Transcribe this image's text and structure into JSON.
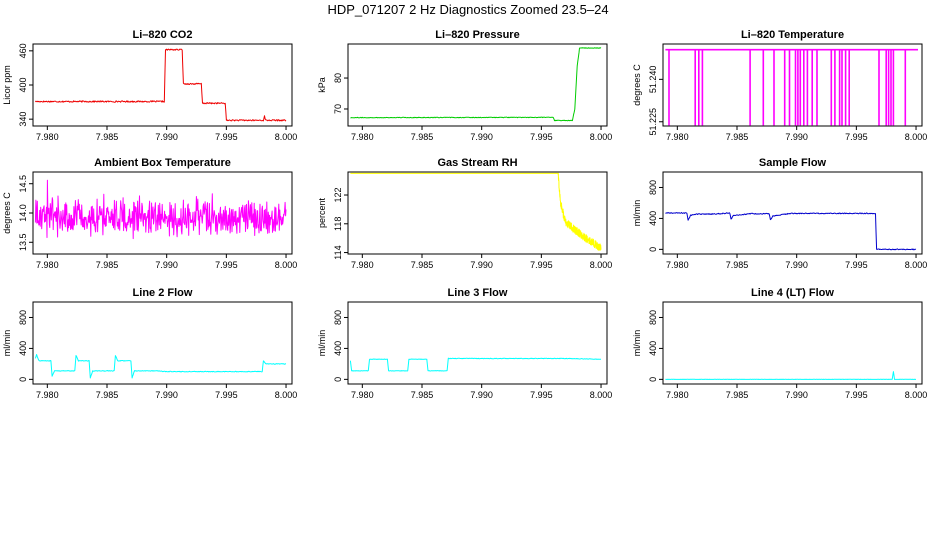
{
  "figure": {
    "title": "HDP_071207  2 Hz Diagnostics Zoomed 23.5–24"
  },
  "colors": {
    "red": "#ee0000",
    "green": "#00cc00",
    "magenta": "#ff00ff",
    "yellow": "#ffff00",
    "blue": "#0000cc",
    "cyan": "#00ffff",
    "axis": "#000000"
  },
  "chart_data": [
    {
      "id": "co2",
      "type": "line",
      "title": "Li–820 CO2",
      "ylabel": "Licor ppm",
      "xlabel": "",
      "color": "red",
      "xlim": [
        7.9788,
        8.0005
      ],
      "ylim": [
        328,
        472
      ],
      "x_ticks": [
        "7.980",
        "7.985",
        "7.990",
        "7.995",
        "8.000"
      ],
      "x_tick_values": [
        7.98,
        7.985,
        7.99,
        7.995,
        8.0
      ],
      "y_ticks": [
        "340",
        "400",
        "460"
      ],
      "y_tick_values": [
        340,
        400,
        460
      ],
      "pattern": "steps",
      "noise": 1.2,
      "points": [
        [
          7.979,
          371
        ],
        [
          7.9898,
          371
        ],
        [
          7.9899,
          462
        ],
        [
          7.9913,
          462
        ],
        [
          7.9914,
          402
        ],
        [
          7.9929,
          402
        ],
        [
          7.993,
          368
        ],
        [
          7.9949,
          368
        ],
        [
          7.995,
          338
        ],
        [
          7.9981,
          338
        ],
        [
          7.9982,
          345
        ],
        [
          7.9983,
          338
        ],
        [
          8.0,
          338
        ]
      ]
    },
    {
      "id": "pressure",
      "type": "line",
      "title": "Li–820 Pressure",
      "ylabel": "kPa",
      "xlabel": "",
      "color": "green",
      "xlim": [
        7.9788,
        8.0005
      ],
      "ylim": [
        64.5,
        91
      ],
      "x_ticks": [
        "7.980",
        "7.985",
        "7.990",
        "7.995",
        "8.000"
      ],
      "x_tick_values": [
        7.98,
        7.985,
        7.99,
        7.995,
        8.0
      ],
      "y_ticks": [
        "70",
        "80"
      ],
      "y_tick_values": [
        70,
        80
      ],
      "pattern": "steps",
      "noise": 0.1,
      "points": [
        [
          7.979,
          67.2
        ],
        [
          7.996,
          67.3
        ],
        [
          7.9961,
          66.3
        ],
        [
          7.9976,
          66.3
        ],
        [
          7.9978,
          70
        ],
        [
          7.998,
          84
        ],
        [
          7.9982,
          89.7
        ],
        [
          8.0,
          89.7
        ]
      ]
    },
    {
      "id": "licor-temp",
      "type": "line",
      "title": "Li–820 Temperature",
      "ylabel": "degrees C",
      "xlabel": "",
      "color": "magenta",
      "xlim": [
        7.9788,
        8.0005
      ],
      "ylim": [
        51.2235,
        51.2525
      ],
      "x_ticks": [
        "7.980",
        "7.985",
        "7.990",
        "7.995",
        "8.000"
      ],
      "x_tick_values": [
        7.98,
        7.985,
        7.99,
        7.995,
        8.0
      ],
      "y_ticks": [
        "51.225",
        "51.240"
      ],
      "y_tick_values": [
        51.225,
        51.24
      ],
      "pattern": "spikes",
      "base": 51.2505,
      "spike_value": 51.2237,
      "spike_x": [
        7.9793,
        7.9815,
        7.9818,
        7.9821,
        7.9861,
        7.9872,
        7.9881,
        7.989,
        7.9894,
        7.9899,
        7.9901,
        7.9903,
        7.9906,
        7.9909,
        7.9913,
        7.9917,
        7.9929,
        7.9932,
        7.9936,
        7.9938,
        7.9941,
        7.9944,
        7.9969,
        7.9975,
        7.9977,
        7.9979,
        7.9981,
        7.9991
      ]
    },
    {
      "id": "ambient-temp",
      "type": "line",
      "title": "Ambient Box Temperature",
      "ylabel": "degrees C",
      "xlabel": "",
      "color": "magenta",
      "xlim": [
        7.9788,
        8.0005
      ],
      "ylim": [
        13.3,
        14.7
      ],
      "x_ticks": [
        "7.980",
        "7.985",
        "7.990",
        "7.995",
        "8.000"
      ],
      "x_tick_values": [
        7.98,
        7.985,
        7.99,
        7.995,
        8.0
      ],
      "y_ticks": [
        "13.5",
        "14.0",
        "14.5"
      ],
      "y_tick_values": [
        13.5,
        14.0,
        14.5
      ],
      "pattern": "noise",
      "x_range": [
        7.979,
        8.0
      ],
      "mean": 13.93,
      "amplitude": 0.28
    },
    {
      "id": "gas-rh",
      "type": "line",
      "title": "Gas Stream RH",
      "ylabel": "percent",
      "xlabel": "",
      "color": "yellow",
      "xlim": [
        7.9788,
        8.0005
      ],
      "ylim": [
        113.8,
        125.2
      ],
      "x_ticks": [
        "7.980",
        "7.985",
        "7.990",
        "7.995",
        "8.000"
      ],
      "x_tick_values": [
        7.98,
        7.985,
        7.99,
        7.995,
        8.0
      ],
      "y_ticks": [
        "114",
        "118",
        "122"
      ],
      "y_tick_values": [
        114,
        118,
        122
      ],
      "pattern": "decay",
      "flat_value": 125.0,
      "flat_until": 7.9964,
      "points": [
        [
          7.9964,
          125.0
        ],
        [
          7.9966,
          121.0
        ],
        [
          7.997,
          118.3
        ],
        [
          7.998,
          116.9
        ],
        [
          7.999,
          115.7
        ],
        [
          8.0,
          114.6
        ]
      ],
      "noise": 0.55
    },
    {
      "id": "sample-flow",
      "type": "line",
      "title": "Sample Flow",
      "ylabel": "ml/min",
      "xlabel": "",
      "color": "blue",
      "xlim": [
        7.9788,
        8.0005
      ],
      "ylim": [
        -60,
        1000
      ],
      "x_ticks": [
        "7.980",
        "7.985",
        "7.990",
        "7.995",
        "8.000"
      ],
      "x_tick_values": [
        7.98,
        7.985,
        7.99,
        7.995,
        8.0
      ],
      "y_ticks": [
        "0",
        "400",
        "800"
      ],
      "y_tick_values": [
        0,
        400,
        800
      ],
      "pattern": "steps",
      "noise": 6,
      "points": [
        [
          7.979,
          470
        ],
        [
          7.9808,
          470
        ],
        [
          7.9809,
          380
        ],
        [
          7.9811,
          440
        ],
        [
          7.9816,
          455
        ],
        [
          7.983,
          455
        ],
        [
          7.9844,
          470
        ],
        [
          7.9845,
          390
        ],
        [
          7.9847,
          440
        ],
        [
          7.9862,
          460
        ],
        [
          7.9877,
          460
        ],
        [
          7.9878,
          380
        ],
        [
          7.988,
          430
        ],
        [
          7.9895,
          465
        ],
        [
          7.9966,
          465
        ],
        [
          7.9967,
          0
        ],
        [
          8.0,
          0
        ]
      ]
    },
    {
      "id": "line2-flow",
      "type": "line",
      "title": "Line 2 Flow",
      "ylabel": "ml/min",
      "xlabel": "",
      "color": "cyan",
      "xlim": [
        7.9788,
        8.0005
      ],
      "ylim": [
        -60,
        1000
      ],
      "x_ticks": [
        "7.980",
        "7.985",
        "7.990",
        "7.995",
        "8.000"
      ],
      "x_tick_values": [
        7.98,
        7.985,
        7.99,
        7.995,
        8.0
      ],
      "y_ticks": [
        "0",
        "400",
        "800"
      ],
      "y_tick_values": [
        0,
        400,
        800
      ],
      "pattern": "steps",
      "noise": 4,
      "points": [
        [
          7.979,
          270
        ],
        [
          7.9791,
          320
        ],
        [
          7.9793,
          240
        ],
        [
          7.9803,
          240
        ],
        [
          7.9804,
          40
        ],
        [
          7.9806,
          110
        ],
        [
          7.9823,
          110
        ],
        [
          7.9824,
          310
        ],
        [
          7.9826,
          240
        ],
        [
          7.9835,
          240
        ],
        [
          7.9836,
          20
        ],
        [
          7.9838,
          110
        ],
        [
          7.9856,
          110
        ],
        [
          7.9857,
          310
        ],
        [
          7.9859,
          240
        ],
        [
          7.987,
          240
        ],
        [
          7.9871,
          20
        ],
        [
          7.9873,
          110
        ],
        [
          7.9892,
          110
        ],
        [
          7.99,
          100
        ],
        [
          7.998,
          100
        ],
        [
          7.9981,
          240
        ],
        [
          7.9983,
          200
        ],
        [
          8.0,
          200
        ]
      ]
    },
    {
      "id": "line3-flow",
      "type": "line",
      "title": "Line 3 Flow",
      "ylabel": "ml/min",
      "xlabel": "",
      "color": "cyan",
      "xlim": [
        7.9788,
        8.0005
      ],
      "ylim": [
        -60,
        1000
      ],
      "x_ticks": [
        "7.980",
        "7.985",
        "7.990",
        "7.995",
        "8.000"
      ],
      "x_tick_values": [
        7.98,
        7.985,
        7.99,
        7.995,
        8.0
      ],
      "y_ticks": [
        "0",
        "400",
        "800"
      ],
      "y_tick_values": [
        0,
        400,
        800
      ],
      "pattern": "steps",
      "noise": 3,
      "points": [
        [
          7.979,
          240
        ],
        [
          7.9791,
          110
        ],
        [
          7.9805,
          110
        ],
        [
          7.9806,
          260
        ],
        [
          7.9821,
          260
        ],
        [
          7.9822,
          110
        ],
        [
          7.9838,
          110
        ],
        [
          7.9839,
          260
        ],
        [
          7.9854,
          260
        ],
        [
          7.9855,
          110
        ],
        [
          7.9871,
          110
        ],
        [
          7.9872,
          270
        ],
        [
          7.997,
          270
        ],
        [
          8.0,
          260
        ]
      ]
    },
    {
      "id": "line4-flow",
      "type": "line",
      "title": "Line 4 (LT) Flow",
      "ylabel": "ml/min",
      "xlabel": "",
      "color": "cyan",
      "xlim": [
        7.9788,
        8.0005
      ],
      "ylim": [
        -60,
        1000
      ],
      "x_ticks": [
        "7.980",
        "7.985",
        "7.990",
        "7.995",
        "8.000"
      ],
      "x_tick_values": [
        7.98,
        7.985,
        7.99,
        7.995,
        8.0
      ],
      "y_ticks": [
        "0",
        "400",
        "800"
      ],
      "y_tick_values": [
        0,
        400,
        800
      ],
      "pattern": "steps",
      "noise": 1,
      "points": [
        [
          7.979,
          0
        ],
        [
          7.998,
          0
        ],
        [
          7.9981,
          100
        ],
        [
          7.9982,
          0
        ],
        [
          8.0,
          0
        ]
      ]
    }
  ]
}
